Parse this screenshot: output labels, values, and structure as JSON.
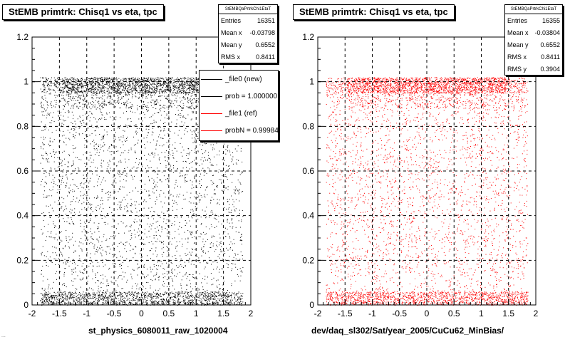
{
  "colors": {
    "hist_left": "#000000",
    "hist_right": "#ff0000",
    "legend_new": "#000000",
    "legend_ref": "#ff0000"
  },
  "left": {
    "title": "StEMB primtrk: Chisq1 vs eta, tpc",
    "stats": {
      "name": "StEMBQaPrtrkChi1EtaT",
      "rows": [
        {
          "label": "Entries",
          "value": "16351"
        },
        {
          "label": "Mean x",
          "value": "-0.03798"
        },
        {
          "label": "Mean y",
          "value": "0.6552"
        },
        {
          "label": "RMS x",
          "value": "0.8411"
        }
      ]
    },
    "legend": [
      {
        "label": "_file0 (new)",
        "color": "#000000"
      },
      {
        "label": "prob = 1.000000",
        "color": "#000000"
      },
      {
        "label": "_file1 (ref)",
        "color": "#ff0000"
      },
      {
        "label": "probN = 0.99984",
        "color": "#ff0000"
      }
    ],
    "xtitle": "st_physics_6080011_raw_1020004",
    "footnote": "..."
  },
  "right": {
    "title": "StEMB primtrk: Chisq1 vs eta, tpc",
    "stats": {
      "name": "StEMBQaPrtrkChi1EtaT",
      "rows": [
        {
          "label": "Entries",
          "value": "16355"
        },
        {
          "label": "Mean x",
          "value": "-0.03804"
        },
        {
          "label": "Mean y",
          "value": "0.6552"
        },
        {
          "label": "RMS x",
          "value": "0.8411"
        },
        {
          "label": "RMS y",
          "value": "0.3904"
        }
      ]
    },
    "xtitle": "dev/daq_sl302/Sat/year_2005/CuCu62_MinBias/"
  },
  "chart_data": [
    {
      "type": "scatter",
      "title": "StEMB primtrk: Chisq1 vs eta, tpc",
      "xlabel": "st_physics_6080011_raw_1020004",
      "ylabel": "",
      "xlim": [
        -2,
        2
      ],
      "ylim": [
        0,
        1.2
      ],
      "x_ticks": [
        "-2",
        "-1.5",
        "-1",
        "-0.5",
        "0",
        "0.5",
        "1",
        "1.5",
        "2"
      ],
      "y_ticks": [
        "0",
        "0.2",
        "0.4",
        "0.6",
        "0.8",
        "1",
        "1.2"
      ],
      "grid": true,
      "color": "#000000",
      "entries": 16351,
      "mean_x": -0.03798,
      "mean_y": 0.6552,
      "rms_x": 0.8411,
      "legend_placement": "top-right",
      "series": [
        {
          "name": "_file0 (new)",
          "x_range": [
            -1.85,
            1.85
          ],
          "dense_bands_y": [
            [
              0.95,
              1.02
            ],
            [
              0.0,
              0.06
            ]
          ]
        }
      ]
    },
    {
      "type": "scatter",
      "title": "StEMB primtrk: Chisq1 vs eta, tpc",
      "xlabel": "dev/daq_sl302/Sat/year_2005/CuCu62_MinBias/",
      "ylabel": "",
      "xlim": [
        -2,
        2
      ],
      "ylim": [
        0,
        1.2
      ],
      "x_ticks": [
        "-2",
        "-1.5",
        "-1",
        "-0.5",
        "0",
        "0.5",
        "1",
        "1.5",
        "2"
      ],
      "y_ticks": [
        "0",
        "0.2",
        "0.4",
        "0.6",
        "0.8",
        "1",
        "1.2"
      ],
      "grid": true,
      "color": "#ff0000",
      "entries": 16355,
      "mean_x": -0.03804,
      "mean_y": 0.6552,
      "rms_x": 0.8411,
      "rms_y": 0.3904,
      "series": [
        {
          "name": "_file1 (ref)",
          "x_range": [
            -1.85,
            1.85
          ],
          "dense_bands_y": [
            [
              0.95,
              1.02
            ],
            [
              0.0,
              0.06
            ]
          ]
        }
      ]
    }
  ]
}
